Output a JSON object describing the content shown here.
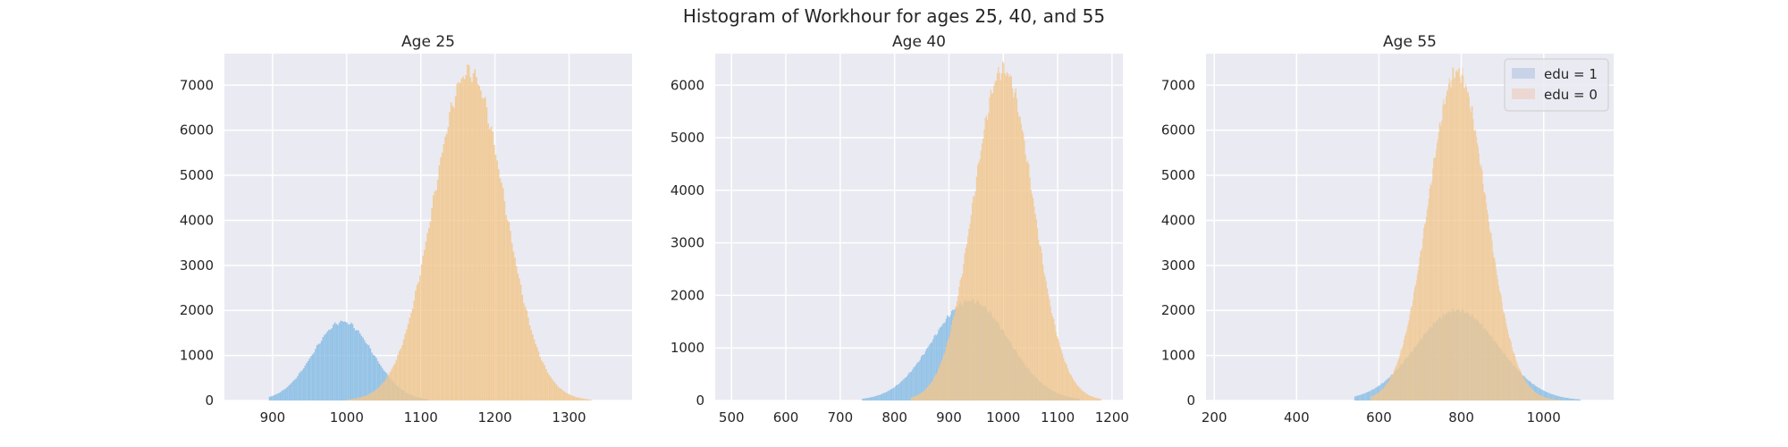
{
  "figure": {
    "title": "Histogram of Workhour for ages 25, 40, and 55",
    "background": "#ffffff",
    "axes_background": "#eaeaf2",
    "grid_color": "#ffffff"
  },
  "colors": {
    "edu1": "#87bde5",
    "edu0": "#f2c78e"
  },
  "legend": {
    "placement": "top-right of Age 55 panel",
    "items": [
      {
        "label": "edu = 1",
        "color": "#c8d3e8"
      },
      {
        "label": "edu = 0",
        "color": "#ecd7d3"
      }
    ]
  },
  "chart_data": [
    {
      "type": "histogram",
      "title": "Age 25",
      "xlim": [
        835,
        1385
      ],
      "ylim": [
        0,
        7700
      ],
      "xticks": [
        900,
        1000,
        1100,
        1200,
        1300
      ],
      "yticks": [
        0,
        1000,
        2000,
        3000,
        4000,
        5000,
        6000,
        7000
      ],
      "grid": true,
      "series": [
        {
          "name": "edu = 1",
          "color": "#87bde5",
          "center": 995,
          "sd": 40,
          "peak": 1750,
          "range": [
            895,
            1110
          ]
        },
        {
          "name": "edu = 0",
          "color": "#f2c78e",
          "center": 1165,
          "sd": 48,
          "peak": 7300,
          "range": [
            1000,
            1330
          ]
        }
      ]
    },
    {
      "type": "histogram",
      "title": "Age 40",
      "xlim": [
        470,
        1220
      ],
      "ylim": [
        0,
        6600
      ],
      "xticks": [
        500,
        600,
        700,
        800,
        900,
        1000,
        1100,
        1200
      ],
      "yticks": [
        0,
        1000,
        2000,
        3000,
        4000,
        5000,
        6000
      ],
      "grid": true,
      "series": [
        {
          "name": "edu = 1",
          "color": "#87bde5",
          "center": 940,
          "sd": 70,
          "peak": 1900,
          "range": [
            740,
            1140
          ]
        },
        {
          "name": "edu = 0",
          "color": "#f2c78e",
          "center": 1000,
          "sd": 55,
          "peak": 6300,
          "range": [
            830,
            1180
          ]
        }
      ]
    },
    {
      "type": "histogram",
      "title": "Age 55",
      "xlim": [
        180,
        1170
      ],
      "ylim": [
        0,
        7700
      ],
      "xticks": [
        200,
        400,
        600,
        800,
        1000
      ],
      "yticks": [
        0,
        1000,
        2000,
        3000,
        4000,
        5000,
        6000,
        7000
      ],
      "grid": true,
      "series": [
        {
          "name": "edu = 1",
          "color": "#87bde5",
          "center": 790,
          "sd": 100,
          "peak": 2000,
          "range": [
            540,
            1090
          ]
        },
        {
          "name": "edu = 0",
          "color": "#f2c78e",
          "center": 790,
          "sd": 70,
          "peak": 7300,
          "range": [
            580,
            1060
          ]
        }
      ]
    }
  ]
}
